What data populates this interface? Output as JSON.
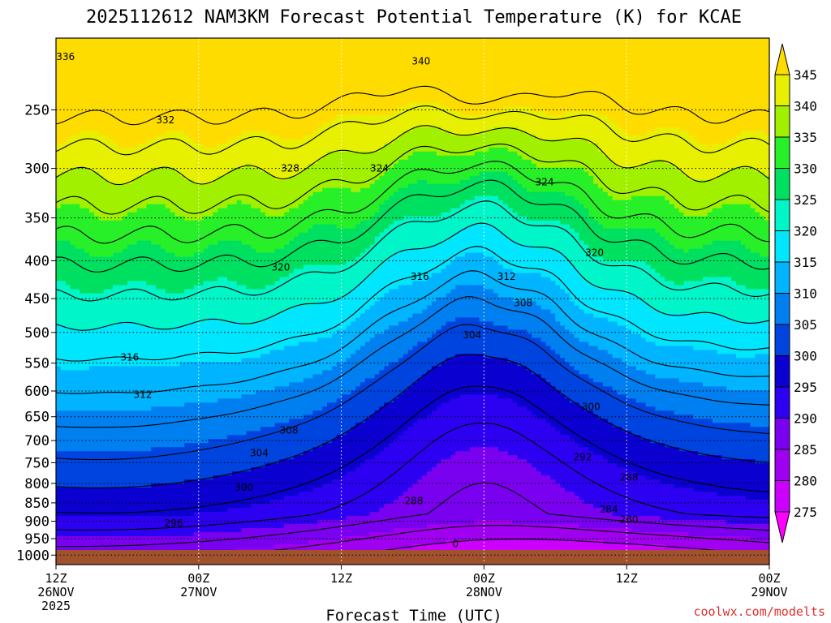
{
  "chart_data": {
    "type": "heatmap",
    "title": "2025112612 NAM3KM Forecast Potential Temperature (K) for KCAE",
    "xlabel": "Forecast Time (UTC)",
    "ylabel": "",
    "credit": "coolwx.com/modelts",
    "y_scale": "log",
    "y_range_hPa": [
      1030,
      200
    ],
    "y_ticks": [
      250,
      300,
      350,
      400,
      450,
      500,
      550,
      600,
      650,
      700,
      750,
      800,
      850,
      900,
      950,
      1000
    ],
    "x_range_hours": [
      0,
      60
    ],
    "x_ticks": [
      {
        "hour": 0,
        "lines": [
          "12Z",
          "26NOV",
          "2025"
        ]
      },
      {
        "hour": 12,
        "lines": [
          "00Z",
          "27NOV"
        ]
      },
      {
        "hour": 24,
        "lines": [
          "12Z"
        ]
      },
      {
        "hour": 36,
        "lines": [
          "00Z",
          "28NOV"
        ]
      },
      {
        "hour": 48,
        "lines": [
          "12Z"
        ]
      },
      {
        "hour": 60,
        "lines": [
          "00Z",
          "29NOV"
        ]
      }
    ],
    "colorbar": {
      "levels": [
        275,
        280,
        285,
        290,
        295,
        300,
        305,
        310,
        315,
        320,
        325,
        330,
        335,
        340,
        345
      ],
      "colors": [
        "#ff00ff",
        "#cc00ff",
        "#a000f0",
        "#7a00f0",
        "#2c00f0",
        "#0a00d0",
        "#0044e0",
        "#0080f0",
        "#00b4ff",
        "#00e6ff",
        "#00f5c8",
        "#00e060",
        "#28f028",
        "#a0f000",
        "#e6f000",
        "#ffdc00"
      ]
    },
    "grid": true,
    "contour_interval_K": 4,
    "contour_labels": [
      {
        "hour": 0.8,
        "p": 212,
        "text": "336"
      },
      {
        "hour": 30.7,
        "p": 215,
        "text": "340"
      },
      {
        "hour": 9.2,
        "p": 258,
        "text": "332"
      },
      {
        "hour": 19.7,
        "p": 300,
        "text": "328"
      },
      {
        "hour": 27.2,
        "p": 300,
        "text": "324"
      },
      {
        "hour": 41.1,
        "p": 313,
        "text": "324"
      },
      {
        "hour": 45.3,
        "p": 390,
        "text": "320"
      },
      {
        "hour": 18.9,
        "p": 408,
        "text": "320"
      },
      {
        "hour": 30.6,
        "p": 420,
        "text": "316"
      },
      {
        "hour": 37.9,
        "p": 420,
        "text": "312"
      },
      {
        "hour": 39.3,
        "p": 456,
        "text": "308"
      },
      {
        "hour": 35.0,
        "p": 504,
        "text": "304"
      },
      {
        "hour": 6.2,
        "p": 540,
        "text": "316"
      },
      {
        "hour": 7.3,
        "p": 607,
        "text": "312"
      },
      {
        "hour": 45.0,
        "p": 630,
        "text": "300"
      },
      {
        "hour": 19.6,
        "p": 678,
        "text": "308"
      },
      {
        "hour": 17.1,
        "p": 728,
        "text": "304"
      },
      {
        "hour": 44.3,
        "p": 737,
        "text": "292"
      },
      {
        "hour": 15.8,
        "p": 810,
        "text": "300"
      },
      {
        "hour": 48.2,
        "p": 785,
        "text": "288"
      },
      {
        "hour": 30.1,
        "p": 845,
        "text": "288"
      },
      {
        "hour": 46.5,
        "p": 867,
        "text": "284"
      },
      {
        "hour": 9.9,
        "p": 905,
        "text": "296"
      },
      {
        "hour": 48.2,
        "p": 895,
        "text": "280"
      },
      {
        "hour": 33.6,
        "p": 966,
        "text": "0"
      }
    ]
  }
}
